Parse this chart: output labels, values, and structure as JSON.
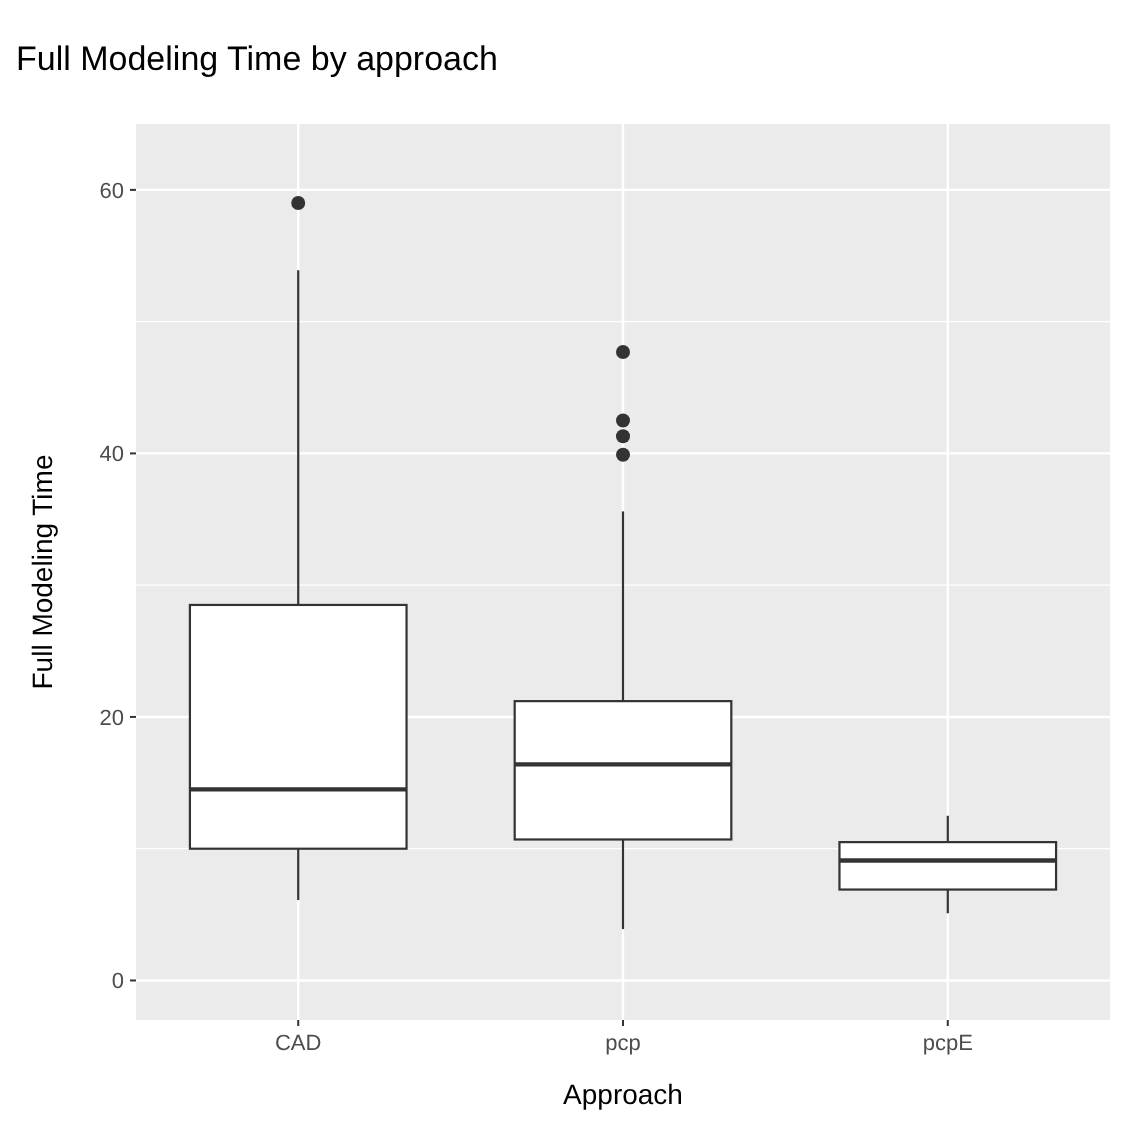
{
  "chart_data": {
    "type": "box",
    "title": "Full Modeling Time by approach",
    "xlabel": "Approach",
    "ylabel": "Full Modeling Time",
    "categories": [
      "CAD",
      "pcp",
      "pcpE"
    ],
    "boxes": [
      {
        "low": 6.1,
        "q1": 10.0,
        "median": 14.5,
        "q3": 28.5,
        "high": 53.9,
        "outliers": [
          59.0
        ]
      },
      {
        "low": 3.9,
        "q1": 10.7,
        "median": 16.4,
        "q3": 21.2,
        "high": 35.6,
        "outliers": [
          39.9,
          41.3,
          42.5,
          47.7
        ]
      },
      {
        "low": 5.1,
        "q1": 6.9,
        "median": 9.1,
        "q3": 10.5,
        "high": 12.5
      }
    ],
    "ylim": [
      -3,
      65
    ],
    "yticks": [
      0,
      20,
      40,
      60
    ],
    "grid": true
  }
}
